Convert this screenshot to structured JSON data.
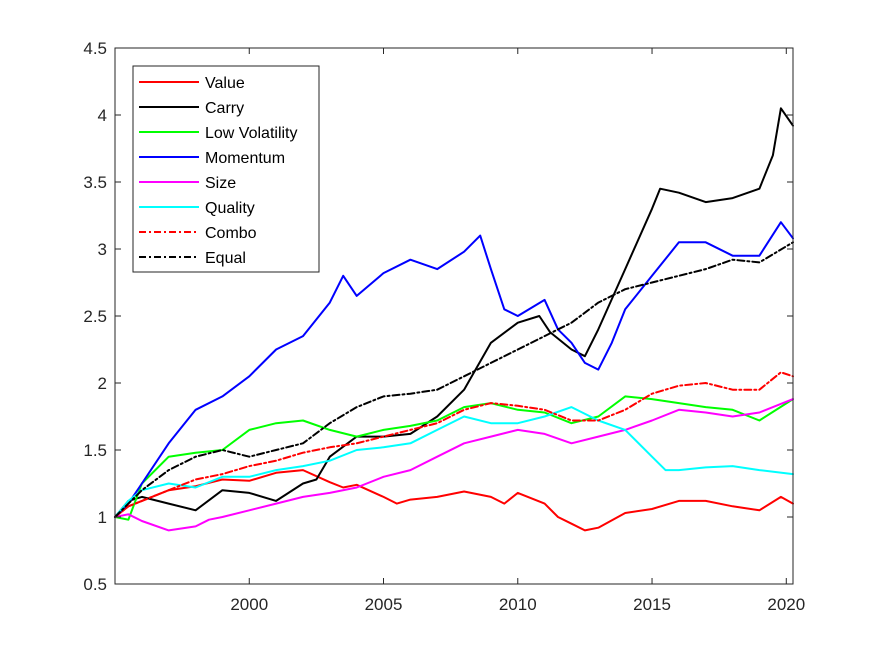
{
  "chart_data": {
    "type": "line",
    "title": "",
    "xlabel": "",
    "ylabel": "",
    "xlim": [
      1995.0,
      2020.25
    ],
    "ylim": [
      0.5,
      4.5
    ],
    "xticks": [
      2000,
      2005,
      2010,
      2015,
      2020
    ],
    "yticks": [
      0.5,
      1,
      1.5,
      2,
      2.5,
      3,
      3.5,
      4,
      4.5
    ],
    "grid": false,
    "legend_position": "top-left",
    "series": [
      {
        "name": "Value",
        "color": "#ff0000",
        "dash": "solid",
        "x": [
          1995.0,
          1995.5,
          1996,
          1997,
          1998,
          1999,
          2000,
          2001,
          2002,
          2003,
          2003.5,
          2004,
          2005,
          2005.5,
          2006,
          2007,
          2008,
          2009,
          2009.5,
          2010,
          2011,
          2011.5,
          2012,
          2012.5,
          2013,
          2014,
          2015,
          2016,
          2017,
          2018,
          2019,
          2019.8,
          2020.25
        ],
        "y": [
          1.0,
          1.08,
          1.12,
          1.2,
          1.23,
          1.28,
          1.27,
          1.33,
          1.35,
          1.26,
          1.22,
          1.24,
          1.15,
          1.1,
          1.13,
          1.15,
          1.19,
          1.15,
          1.1,
          1.18,
          1.1,
          1.0,
          0.95,
          0.9,
          0.92,
          1.03,
          1.06,
          1.12,
          1.12,
          1.08,
          1.05,
          1.15,
          1.1
        ]
      },
      {
        "name": "Carry",
        "color": "#000000",
        "dash": "solid",
        "x": [
          1995.0,
          1995.5,
          1996,
          1997,
          1998,
          1999,
          2000,
          2001,
          2002,
          2002.5,
          2003,
          2004,
          2005,
          2006,
          2007,
          2008,
          2009,
          2010,
          2010.8,
          2011.2,
          2012,
          2012.5,
          2013,
          2014,
          2015,
          2015.3,
          2016,
          2017,
          2018,
          2019,
          2019.5,
          2019.8,
          2020.25
        ],
        "y": [
          1.0,
          1.12,
          1.15,
          1.1,
          1.05,
          1.2,
          1.18,
          1.12,
          1.25,
          1.28,
          1.45,
          1.6,
          1.6,
          1.62,
          1.75,
          1.95,
          2.3,
          2.45,
          2.5,
          2.38,
          2.25,
          2.2,
          2.4,
          2.85,
          3.3,
          3.45,
          3.42,
          3.35,
          3.38,
          3.45,
          3.7,
          4.05,
          3.92
        ]
      },
      {
        "name": "Low Volatility",
        "color": "#00ff00",
        "dash": "solid",
        "x": [
          1995.0,
          1995.5,
          1996,
          1997,
          1998,
          1999,
          2000,
          2001,
          2002,
          2003,
          2004,
          2005,
          2006,
          2007,
          2008,
          2009,
          2010,
          2011,
          2012,
          2013,
          2014,
          2015,
          2016,
          2017,
          2018,
          2019,
          2020.25
        ],
        "y": [
          1.0,
          0.98,
          1.25,
          1.45,
          1.48,
          1.5,
          1.65,
          1.7,
          1.72,
          1.65,
          1.6,
          1.65,
          1.68,
          1.72,
          1.82,
          1.85,
          1.8,
          1.78,
          1.7,
          1.75,
          1.9,
          1.88,
          1.85,
          1.82,
          1.8,
          1.72,
          1.88
        ]
      },
      {
        "name": "Momentum",
        "color": "#0000ff",
        "dash": "solid",
        "x": [
          1995.0,
          1995.5,
          1996,
          1997,
          1998,
          1999,
          2000,
          2001,
          2002,
          2003,
          2003.5,
          2004,
          2005,
          2006,
          2007,
          2008,
          2008.6,
          2009,
          2009.5,
          2010,
          2011,
          2011.5,
          2012,
          2012.5,
          2013,
          2013.5,
          2014,
          2015,
          2016,
          2017,
          2018,
          2019,
          2019.8,
          2020.25
        ],
        "y": [
          1.0,
          1.1,
          1.25,
          1.55,
          1.8,
          1.9,
          2.05,
          2.25,
          2.35,
          2.6,
          2.8,
          2.65,
          2.82,
          2.92,
          2.85,
          2.98,
          3.1,
          2.85,
          2.55,
          2.5,
          2.62,
          2.4,
          2.3,
          2.15,
          2.1,
          2.3,
          2.55,
          2.8,
          3.05,
          3.05,
          2.95,
          2.95,
          3.2,
          3.08
        ]
      },
      {
        "name": "Size",
        "color": "#ff00ff",
        "dash": "solid",
        "x": [
          1995.0,
          1995.5,
          1996,
          1997,
          1998,
          1998.5,
          1999,
          2000,
          2001,
          2002,
          2003,
          2004,
          2005,
          2006,
          2007,
          2008,
          2009,
          2010,
          2011,
          2012,
          2013,
          2014,
          2015,
          2016,
          2017,
          2018,
          2019,
          2020.25
        ],
        "y": [
          1.0,
          1.02,
          0.97,
          0.9,
          0.93,
          0.98,
          1.0,
          1.05,
          1.1,
          1.15,
          1.18,
          1.22,
          1.3,
          1.35,
          1.45,
          1.55,
          1.6,
          1.65,
          1.62,
          1.55,
          1.6,
          1.65,
          1.72,
          1.8,
          1.78,
          1.75,
          1.78,
          1.88
        ]
      },
      {
        "name": "Quality",
        "color": "#00ffff",
        "dash": "solid",
        "x": [
          1995.0,
          1995.5,
          1996,
          1997,
          1998,
          1999,
          2000,
          2001,
          2002,
          2003,
          2004,
          2005,
          2006,
          2007,
          2008,
          2009,
          2010,
          2011,
          2012,
          2013,
          2014,
          2015,
          2015.5,
          2016,
          2017,
          2018,
          2019,
          2020.25
        ],
        "y": [
          1.0,
          1.12,
          1.2,
          1.25,
          1.22,
          1.3,
          1.3,
          1.35,
          1.38,
          1.42,
          1.5,
          1.52,
          1.55,
          1.65,
          1.75,
          1.7,
          1.7,
          1.75,
          1.82,
          1.72,
          1.65,
          1.45,
          1.35,
          1.35,
          1.37,
          1.38,
          1.35,
          1.32
        ]
      },
      {
        "name": "Combo",
        "color": "#ff0000",
        "dash": "dashdot",
        "x": [
          1995.0,
          1995.5,
          1996,
          1997,
          1998,
          1999,
          2000,
          2001,
          2002,
          2003,
          2004,
          2005,
          2006,
          2007,
          2008,
          2009,
          2010,
          2011,
          2012,
          2013,
          2014,
          2015,
          2016,
          2017,
          2018,
          2019,
          2019.8,
          2020.25
        ],
        "y": [
          1.0,
          1.08,
          1.12,
          1.2,
          1.28,
          1.32,
          1.38,
          1.42,
          1.48,
          1.52,
          1.55,
          1.6,
          1.65,
          1.7,
          1.8,
          1.85,
          1.83,
          1.8,
          1.72,
          1.72,
          1.8,
          1.92,
          1.98,
          2.0,
          1.95,
          1.95,
          2.08,
          2.05
        ]
      },
      {
        "name": "Equal",
        "color": "#000000",
        "dash": "dashdot",
        "x": [
          1995.0,
          1995.5,
          1996,
          1997,
          1998,
          1999,
          2000,
          2001,
          2002,
          2003,
          2004,
          2005,
          2006,
          2007,
          2008,
          2009,
          2010,
          2011,
          2012,
          2013,
          2014,
          2015,
          2016,
          2017,
          2018,
          2019,
          2020.25
        ],
        "y": [
          1.0,
          1.1,
          1.2,
          1.35,
          1.45,
          1.5,
          1.45,
          1.5,
          1.55,
          1.7,
          1.82,
          1.9,
          1.92,
          1.95,
          2.05,
          2.15,
          2.25,
          2.35,
          2.45,
          2.6,
          2.7,
          2.75,
          2.8,
          2.85,
          2.92,
          2.9,
          3.05
        ]
      }
    ]
  }
}
